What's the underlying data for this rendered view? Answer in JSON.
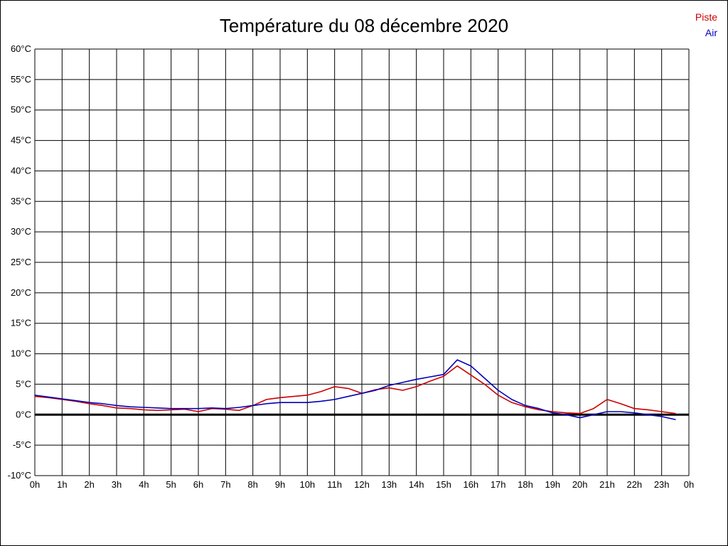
{
  "title": "Température du 08 décembre 2020",
  "legend": [
    {
      "label": "Piste",
      "color": "#cc0000"
    },
    {
      "label": "Air",
      "color": "#0000bb"
    }
  ],
  "chart_data": {
    "type": "line",
    "title": "Température du 08 décembre 2020",
    "xlabel": "",
    "ylabel": "",
    "xlim": [
      0,
      24
    ],
    "ylim": [
      -10,
      60
    ],
    "grid": true,
    "zero_line_value": 0,
    "legend_position": "top-right",
    "x_tick_positions": [
      0,
      1,
      2,
      3,
      4,
      5,
      6,
      7,
      8,
      9,
      10,
      11,
      12,
      13,
      14,
      15,
      16,
      17,
      18,
      19,
      20,
      21,
      22,
      23,
      24
    ],
    "x_tick_labels": [
      "0h",
      "1h",
      "2h",
      "3h",
      "4h",
      "5h",
      "6h",
      "7h",
      "8h",
      "9h",
      "10h",
      "11h",
      "12h",
      "13h",
      "14h",
      "15h",
      "16h",
      "17h",
      "18h",
      "19h",
      "20h",
      "21h",
      "22h",
      "23h",
      "0h"
    ],
    "y_tick_values": [
      60,
      55,
      50,
      45,
      40,
      35,
      30,
      25,
      20,
      15,
      10,
      5,
      0,
      -5,
      -10
    ],
    "y_tick_labels": [
      "60°C",
      "55°C",
      "50°C",
      "45°C",
      "40°C",
      "35°C",
      "30°C",
      "25°C",
      "20°C",
      "15°C",
      "10°C",
      "5°C",
      "0°C",
      "-5°C",
      "-10°C"
    ],
    "series": [
      {
        "name": "Piste",
        "color": "#cc0000",
        "x": [
          0,
          0.5,
          1,
          1.5,
          2,
          2.5,
          3,
          3.5,
          4,
          4.5,
          5,
          5.5,
          6,
          6.5,
          7,
          7.5,
          8,
          8.5,
          9,
          9.5,
          10,
          10.5,
          11,
          11.5,
          12,
          12.5,
          13,
          13.5,
          14,
          14.5,
          15,
          15.5,
          16,
          16.5,
          17,
          17.5,
          18,
          18.5,
          19,
          19.5,
          20,
          20.5,
          21,
          21.5,
          22,
          22.5,
          23,
          23.5
        ],
        "y": [
          3.0,
          2.8,
          2.5,
          2.2,
          1.8,
          1.5,
          1.1,
          1.0,
          0.8,
          0.7,
          0.8,
          0.9,
          0.5,
          1.0,
          0.9,
          0.7,
          1.5,
          2.5,
          2.8,
          3.0,
          3.2,
          3.8,
          4.6,
          4.3,
          3.5,
          4.1,
          4.4,
          4.0,
          4.6,
          5.5,
          6.3,
          8.0,
          6.5,
          5.0,
          3.2,
          2.0,
          1.3,
          0.8,
          0.5,
          0.3,
          0.2,
          1.0,
          2.5,
          1.8,
          1.0,
          0.8,
          0.5,
          0.2
        ]
      },
      {
        "name": "Air",
        "color": "#0000bb",
        "x": [
          0,
          0.5,
          1,
          1.5,
          2,
          2.5,
          3,
          3.5,
          4,
          4.5,
          5,
          5.5,
          6,
          6.5,
          7,
          7.5,
          8,
          8.5,
          9,
          9.5,
          10,
          10.5,
          11,
          11.5,
          12,
          12.5,
          13,
          13.5,
          14,
          14.5,
          15,
          15.5,
          16,
          16.5,
          17,
          17.5,
          18,
          18.5,
          19,
          19.5,
          20,
          20.5,
          21,
          21.5,
          22,
          22.5,
          23,
          23.5
        ],
        "y": [
          3.2,
          2.9,
          2.6,
          2.3,
          2.0,
          1.8,
          1.5,
          1.3,
          1.2,
          1.1,
          1.0,
          1.0,
          1.0,
          1.1,
          1.0,
          1.2,
          1.5,
          1.8,
          2.0,
          2.0,
          2.0,
          2.2,
          2.5,
          3.0,
          3.5,
          4.0,
          4.8,
          5.3,
          5.8,
          6.2,
          6.6,
          9.0,
          8.0,
          6.0,
          4.0,
          2.5,
          1.5,
          1.0,
          0.3,
          0.0,
          -0.5,
          0.0,
          0.5,
          0.5,
          0.3,
          0.0,
          -0.3,
          -0.8
        ]
      }
    ]
  }
}
